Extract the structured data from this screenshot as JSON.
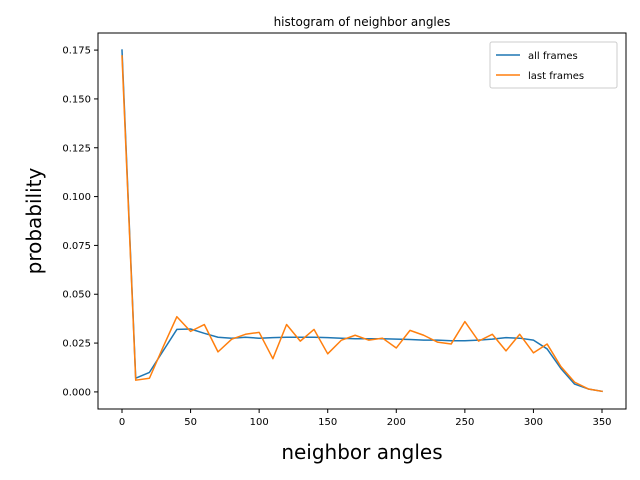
{
  "chart_data": {
    "type": "line",
    "title": "histogram of neighbor angles",
    "xlabel": "neighbor angles",
    "ylabel": "probability",
    "xlim": [
      -17.5,
      367.5
    ],
    "ylim": [
      -0.00875,
      0.18375
    ],
    "xticks": [
      0,
      50,
      100,
      150,
      200,
      250,
      300,
      350
    ],
    "yticks": [
      0.0,
      0.025,
      0.05,
      0.075,
      0.1,
      0.125,
      0.15,
      0.175
    ],
    "ytick_labels": [
      "0.000",
      "0.025",
      "0.050",
      "0.075",
      "0.100",
      "0.125",
      "0.150",
      "0.175"
    ],
    "legend_position": "top-right",
    "grid": false,
    "x": [
      0,
      10,
      20,
      30,
      40,
      50,
      60,
      70,
      80,
      90,
      100,
      110,
      120,
      130,
      140,
      150,
      160,
      170,
      180,
      190,
      200,
      210,
      220,
      230,
      240,
      250,
      260,
      270,
      280,
      290,
      300,
      310,
      320,
      330,
      340,
      350
    ],
    "series": [
      {
        "name": "all frames",
        "color": "#1f77b4",
        "values": [
          0.175,
          0.007,
          0.01,
          0.021,
          0.032,
          0.0322,
          0.03,
          0.028,
          0.0275,
          0.028,
          0.0275,
          0.0278,
          0.028,
          0.028,
          0.028,
          0.0278,
          0.0275,
          0.0272,
          0.0272,
          0.0272,
          0.027,
          0.0268,
          0.0265,
          0.0265,
          0.0262,
          0.0262,
          0.0265,
          0.027,
          0.0278,
          0.0275,
          0.0265,
          0.022,
          0.012,
          0.004,
          0.0015,
          0.0003
        ]
      },
      {
        "name": "last frames",
        "color": "#ff7f0e",
        "values": [
          0.172,
          0.006,
          0.007,
          0.023,
          0.0385,
          0.031,
          0.0345,
          0.0205,
          0.027,
          0.0295,
          0.0305,
          0.017,
          0.0345,
          0.026,
          0.032,
          0.0195,
          0.0265,
          0.029,
          0.0265,
          0.0275,
          0.0225,
          0.0315,
          0.029,
          0.0255,
          0.0245,
          0.036,
          0.026,
          0.0295,
          0.021,
          0.0295,
          0.02,
          0.0245,
          0.013,
          0.005,
          0.0015,
          0.0003
        ]
      }
    ]
  }
}
